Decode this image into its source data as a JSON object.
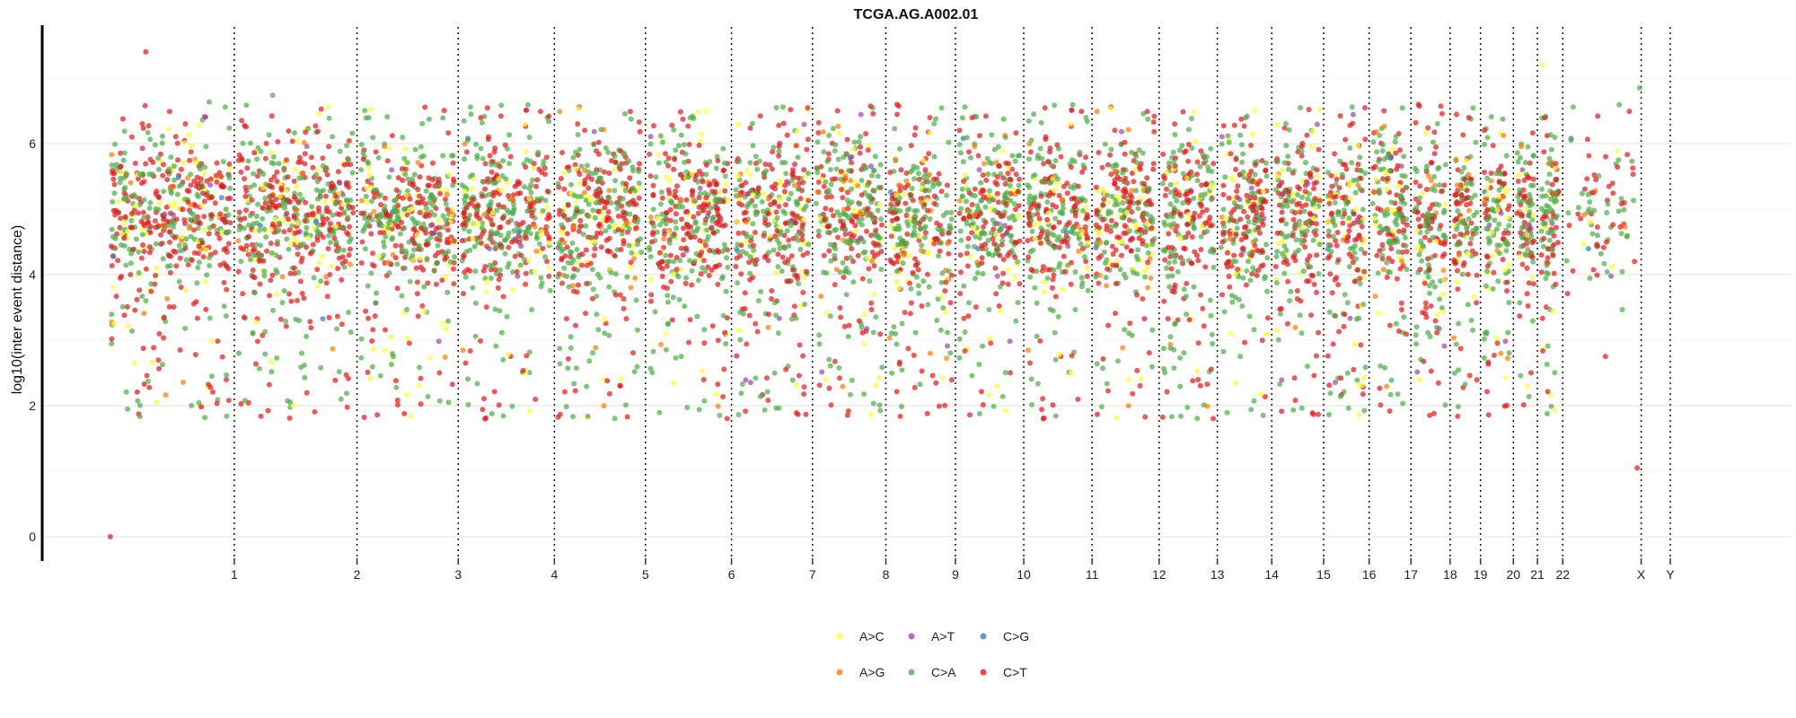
{
  "chart_data": {
    "type": "scatter",
    "title": "TCGA.AG.A002.01",
    "xlabel": "",
    "ylabel": "log10(inter event distance)",
    "ylim": [
      -0.4,
      7.8
    ],
    "y_ticks": [
      0,
      2,
      4,
      6
    ],
    "grid": true,
    "legend_position": "bottom",
    "chromosomes": [
      "1",
      "2",
      "3",
      "4",
      "5",
      "6",
      "7",
      "8",
      "9",
      "10",
      "11",
      "12",
      "13",
      "14",
      "15",
      "16",
      "17",
      "18",
      "19",
      "20",
      "21",
      "22",
      "X",
      "Y"
    ],
    "chromosome_relative_sizes": [
      1.0,
      0.97,
      0.8,
      0.76,
      0.72,
      0.68,
      0.64,
      0.58,
      0.55,
      0.54,
      0.54,
      0.53,
      0.46,
      0.43,
      0.41,
      0.36,
      0.33,
      0.31,
      0.24,
      0.26,
      0.19,
      0.2,
      0.62,
      0.23
    ],
    "y_distribution": {
      "typical_min": 1.8,
      "typical_max": 6.6,
      "center": 4.9
    },
    "series": [
      {
        "name": "A>C",
        "color": "#ffff33",
        "approx_share": 0.09
      },
      {
        "name": "A>G",
        "color": "#ff7f00",
        "approx_share": 0.03
      },
      {
        "name": "A>T",
        "color": "#984ea3",
        "approx_share": 0.01
      },
      {
        "name": "C>A",
        "color": "#4daf4a",
        "approx_share": 0.4
      },
      {
        "name": "C>G",
        "color": "#377eb8",
        "approx_share": 0.005
      },
      {
        "name": "C>T",
        "color": "#e41a1c",
        "approx_share": 0.465
      }
    ],
    "notable_points": [
      {
        "series": "C>T",
        "x_chrom": "1",
        "x_frac": 0.02,
        "y": 0.0
      },
      {
        "series": "C>T",
        "x_chrom": "1",
        "x_frac": 0.3,
        "y": 7.4
      },
      {
        "series": "C>T",
        "x_chrom": "X",
        "x_frac": 0.95,
        "y": 1.05
      },
      {
        "series": "C>A",
        "x_chrom": "X",
        "x_frac": 0.98,
        "y": 6.85
      },
      {
        "series": "A>C",
        "x_chrom": "22",
        "x_frac": 0.2,
        "y": 7.2
      }
    ]
  }
}
